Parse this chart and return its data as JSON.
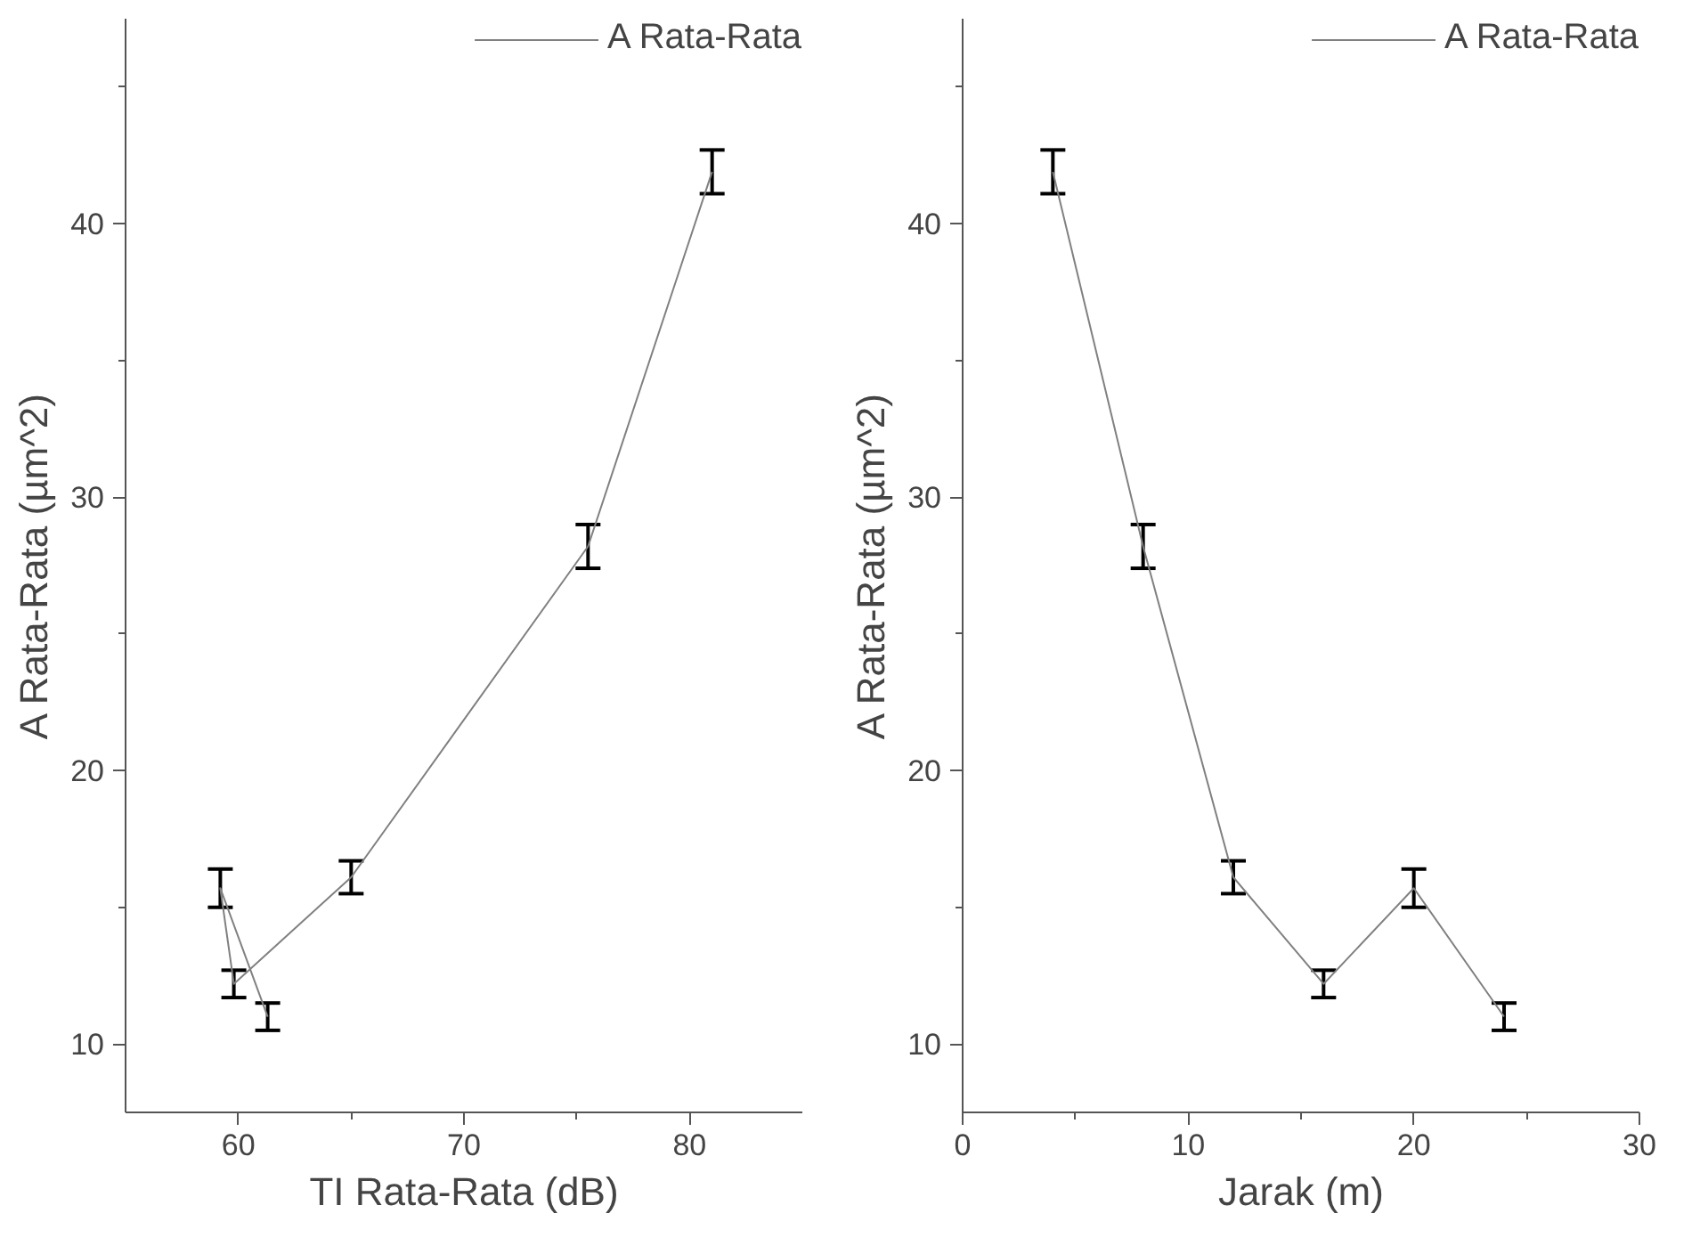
{
  "chart_data": [
    {
      "type": "line",
      "xlabel": "TI Rata-Rata (dB)",
      "ylabel": "A Rata-Rata (µm^2)",
      "x": [
        81,
        75.5,
        65,
        59.8,
        59.2,
        61.3
      ],
      "series": [
        {
          "name": "A Rata-Rata",
          "color": "#808080",
          "values": [
            41.9,
            28.2,
            16.1,
            12.2,
            15.7,
            11.0
          ],
          "errors": [
            0.8,
            0.8,
            0.6,
            0.5,
            0.7,
            0.5
          ]
        }
      ],
      "xlim": [
        55,
        85
      ],
      "ylim": [
        7.5,
        47.5
      ],
      "xticks": [
        60,
        {
          "value": 65,
          "label": null
        },
        70,
        {
          "value": 75,
          "label": null
        },
        80
      ],
      "yticks": [
        10,
        {
          "value": 15,
          "label": null
        },
        20,
        {
          "value": 25,
          "label": null
        },
        30,
        {
          "value": 35,
          "label": null
        },
        40,
        {
          "value": 45,
          "label": null
        }
      ],
      "legend": "top right",
      "grid": false
    },
    {
      "type": "line",
      "xlabel": "Jarak (m)",
      "ylabel": "A Rata-Rata (µm^2)",
      "x": [
        4,
        8,
        12,
        16,
        20,
        24
      ],
      "series": [
        {
          "name": "A Rata-Rata",
          "color": "#808080",
          "values": [
            41.9,
            28.2,
            16.1,
            12.2,
            15.7,
            11.0
          ],
          "errors": [
            0.8,
            0.8,
            0.6,
            0.5,
            0.7,
            0.5
          ]
        }
      ],
      "xlim": [
        0,
        30
      ],
      "ylim": [
        7.5,
        47.5
      ],
      "xticks": [
        0,
        {
          "value": 5,
          "label": null
        },
        10,
        {
          "value": 15,
          "label": null
        },
        20,
        {
          "value": 25,
          "label": null
        },
        30
      ],
      "yticks": [
        10,
        {
          "value": 15,
          "label": null
        },
        20,
        {
          "value": 25,
          "label": null
        },
        30,
        {
          "value": 35,
          "label": null
        },
        40,
        {
          "value": 45,
          "label": null
        }
      ],
      "legend": "top right",
      "grid": false
    }
  ]
}
